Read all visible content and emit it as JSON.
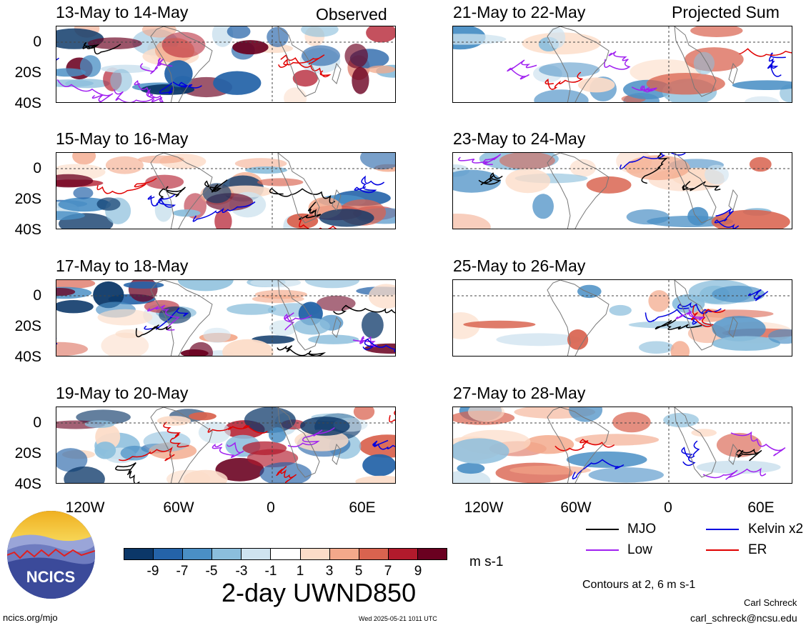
{
  "left_column_label": "Observed",
  "right_column_label": "Projected Sum",
  "panels": [
    {
      "title": "13-May to 14-May"
    },
    {
      "title": "15-May to 16-May"
    },
    {
      "title": "17-May to 18-May"
    },
    {
      "title": "19-May to 20-May"
    },
    {
      "title": "21-May to 22-May"
    },
    {
      "title": "23-May to 24-May"
    },
    {
      "title": "25-May to 26-May"
    },
    {
      "title": "27-May to 28-May"
    }
  ],
  "y_ticks": [
    "0",
    "20S",
    "40S"
  ],
  "x_ticks": [
    "120W",
    "60W",
    "0",
    "60E"
  ],
  "colorbar": {
    "colors": [
      "#0b3768",
      "#2463a8",
      "#4a8fc5",
      "#8bbedc",
      "#cfe3ef",
      "#ffffff",
      "#fcdcc8",
      "#f3a88a",
      "#d9634f",
      "#b21a2c",
      "#6a0020"
    ],
    "labels": [
      "-9",
      "-7",
      "-5",
      "-3",
      "-1",
      "1",
      "3",
      "5",
      "7",
      "9"
    ],
    "units": "m s-1"
  },
  "main_title": "2-day UWND850",
  "legend": [
    {
      "name": "MJO",
      "color": "#000000"
    },
    {
      "name": "Kelvin x2",
      "color": "#0000e0"
    },
    {
      "name": "Low",
      "color": "#a020f0"
    },
    {
      "name": "ER",
      "color": "#e00000"
    }
  ],
  "contours_note": "Contours at 2, 6 m s-1",
  "author": "Carl Schreck",
  "email": "carl_schreck@ncsu.edu",
  "website": "ncics.org/mjo",
  "timestamp": "Wed 2025-05-21 1011 UTC",
  "logo_text": "NCICS"
}
